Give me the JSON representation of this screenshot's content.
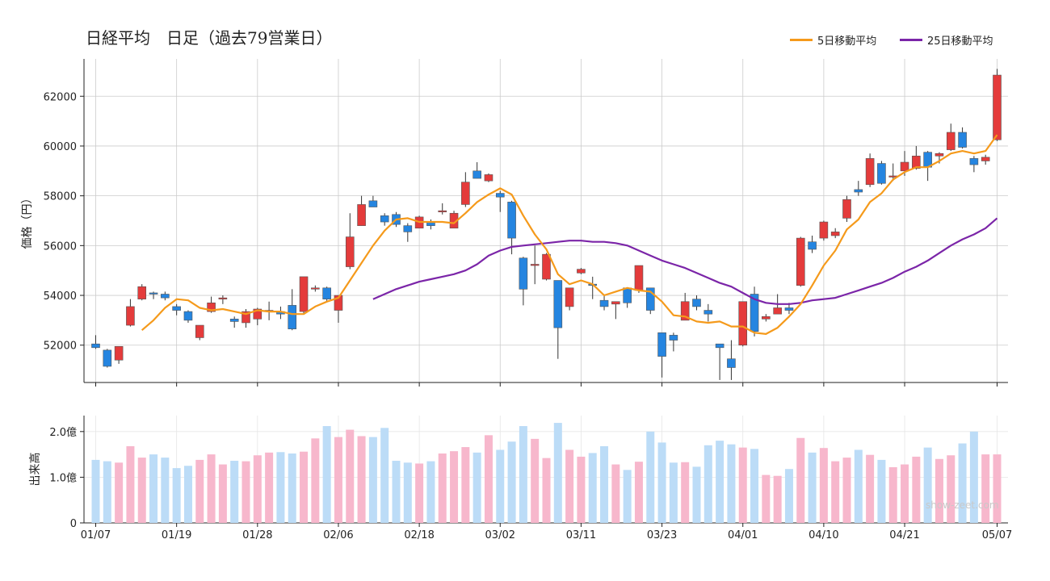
{
  "title": "日経平均　日足（過去79営業日）",
  "legend": {
    "ma5": "5日移動平均",
    "ma25": "25日移動平均"
  },
  "watermark": "show-zeet.com",
  "colors": {
    "up": "#e43b3b",
    "down": "#2585e0",
    "ma5": "#f59a1b",
    "ma25": "#7b25a8",
    "vol_up": "#f7b7cc",
    "vol_down": "#bcdcf7",
    "grid": "#cccccc",
    "axis": "#222222"
  },
  "chart_data": [
    {
      "type": "candlestick",
      "ylabel": "価格（円）",
      "ylim": [
        50500,
        63500
      ],
      "yticks": [
        52000,
        54000,
        56000,
        58000,
        60000,
        62000
      ],
      "xtick_labels": [
        {
          "index": 0,
          "label": "01/07"
        },
        {
          "index": 7,
          "label": "01/19"
        },
        {
          "index": 14,
          "label": "01/28"
        },
        {
          "index": 21,
          "label": "02/06"
        },
        {
          "index": 28,
          "label": "02/18"
        },
        {
          "index": 35,
          "label": "03/02"
        },
        {
          "index": 42,
          "label": "03/11"
        },
        {
          "index": 49,
          "label": "03/23"
        },
        {
          "index": 56,
          "label": "04/01"
        },
        {
          "index": 63,
          "label": "04/10"
        },
        {
          "index": 70,
          "label": "04/21"
        },
        {
          "index": 78,
          "label": "05/07"
        }
      ],
      "grid": true,
      "legend_position": "top-right",
      "candles": [
        [
          52050,
          52400,
          51850,
          51900
        ],
        [
          51800,
          51850,
          51100,
          51150
        ],
        [
          51400,
          51950,
          51250,
          51950
        ],
        [
          52800,
          53850,
          52750,
          53550
        ],
        [
          53850,
          54450,
          53800,
          54350
        ],
        [
          54100,
          54150,
          53850,
          54050
        ],
        [
          54050,
          54150,
          53800,
          53900
        ],
        [
          53550,
          53650,
          53200,
          53400
        ],
        [
          53350,
          53400,
          52900,
          53000
        ],
        [
          52300,
          52800,
          52200,
          52800
        ],
        [
          53350,
          53950,
          53300,
          53700
        ],
        [
          53850,
          54000,
          53650,
          53900
        ],
        [
          53050,
          53150,
          52700,
          52950
        ],
        [
          52900,
          53450,
          52700,
          53350
        ],
        [
          53050,
          53500,
          52800,
          53450
        ],
        [
          53400,
          53750,
          53000,
          53400
        ],
        [
          53350,
          53550,
          53050,
          53250
        ],
        [
          53600,
          54250,
          52600,
          52650
        ],
        [
          53350,
          54700,
          53250,
          54750
        ],
        [
          54300,
          54400,
          54150,
          54300
        ],
        [
          54300,
          54350,
          53750,
          53850
        ],
        [
          53400,
          54000,
          52900,
          54000
        ],
        [
          55150,
          57300,
          55050,
          56350
        ],
        [
          56800,
          58000,
          56800,
          57650
        ],
        [
          57800,
          58000,
          57550,
          57550
        ],
        [
          57200,
          57300,
          56800,
          56950
        ],
        [
          57250,
          57350,
          56750,
          56850
        ],
        [
          56800,
          56900,
          56150,
          56550
        ],
        [
          56700,
          57200,
          56700,
          57150
        ],
        [
          56950,
          57050,
          56650,
          56800
        ],
        [
          57400,
          57700,
          57250,
          57400
        ],
        [
          56700,
          57400,
          56700,
          57300
        ],
        [
          57650,
          58950,
          57550,
          58550
        ],
        [
          59000,
          59350,
          58700,
          58700
        ],
        [
          58600,
          58900,
          58550,
          58850
        ],
        [
          58100,
          58200,
          57350,
          57950
        ],
        [
          57750,
          57800,
          55650,
          56300
        ],
        [
          55500,
          55550,
          53600,
          54250
        ],
        [
          55200,
          56000,
          54450,
          55250
        ],
        [
          54650,
          55700,
          54600,
          55650
        ],
        [
          54600,
          54600,
          51450,
          52700
        ],
        [
          53550,
          54300,
          53400,
          54300
        ],
        [
          54900,
          55100,
          54850,
          55050
        ],
        [
          54450,
          54750,
          53850,
          54400
        ],
        [
          53800,
          54000,
          53400,
          53550
        ],
        [
          53650,
          53750,
          53050,
          53750
        ],
        [
          54300,
          54300,
          53500,
          53700
        ],
        [
          54200,
          55200,
          54100,
          55200
        ],
        [
          54300,
          54300,
          53250,
          53400
        ],
        [
          52500,
          52500,
          50700,
          51550
        ],
        [
          52400,
          52500,
          51750,
          52200
        ],
        [
          53000,
          54100,
          53000,
          53750
        ],
        [
          53850,
          54000,
          53400,
          53550
        ],
        [
          53400,
          53650,
          52950,
          53250
        ],
        [
          52050,
          52050,
          50600,
          51900
        ],
        [
          51450,
          52200,
          50600,
          51100
        ],
        [
          52000,
          53700,
          51950,
          53750
        ],
        [
          54050,
          54350,
          52350,
          52550
        ],
        [
          53050,
          53250,
          52950,
          53150
        ],
        [
          53250,
          54050,
          53250,
          53500
        ],
        [
          53500,
          53700,
          53250,
          53400
        ],
        [
          54400,
          56350,
          54350,
          56300
        ],
        [
          56150,
          56400,
          55700,
          55850
        ],
        [
          56300,
          57000,
          56200,
          56950
        ],
        [
          56400,
          56700,
          56300,
          56550
        ],
        [
          57100,
          58000,
          56950,
          57850
        ],
        [
          58250,
          58600,
          58000,
          58150
        ],
        [
          58450,
          59700,
          58350,
          59500
        ],
        [
          59300,
          59400,
          58450,
          58500
        ],
        [
          58800,
          59300,
          58600,
          58800
        ],
        [
          59000,
          59800,
          58800,
          59350
        ],
        [
          59100,
          60000,
          59050,
          59600
        ],
        [
          59750,
          59800,
          58600,
          59150
        ],
        [
          59600,
          59750,
          59300,
          59700
        ],
        [
          59850,
          60900,
          59800,
          60550
        ],
        [
          60550,
          60750,
          59900,
          59950
        ],
        [
          59500,
          59600,
          58950,
          59250
        ],
        [
          59400,
          59650,
          59250,
          59550
        ],
        [
          60250,
          63100,
          60200,
          62850
        ]
      ],
      "ma5": [
        null,
        null,
        null,
        null,
        52600,
        53000,
        53500,
        53850,
        53800,
        53500,
        53400,
        53450,
        53350,
        53250,
        53400,
        53350,
        53350,
        53250,
        53250,
        53550,
        53750,
        53900,
        54600,
        55300,
        56000,
        56600,
        57050,
        57100,
        56950,
        56950,
        56950,
        56900,
        57300,
        57750,
        58050,
        58300,
        58050,
        57200,
        56450,
        55850,
        54850,
        54450,
        54600,
        54450,
        54000,
        54150,
        54300,
        54200,
        54150,
        53750,
        53200,
        53150,
        52950,
        52900,
        52950,
        52750,
        52750,
        52500,
        52450,
        52700,
        53150,
        53650,
        54400,
        55200,
        55800,
        56650,
        57050,
        57750,
        58100,
        58650,
        58950,
        59150,
        59150,
        59400,
        59700,
        59800,
        59700,
        59800,
        60450
      ],
      "ma25": [
        null,
        null,
        null,
        null,
        null,
        null,
        null,
        null,
        null,
        null,
        null,
        null,
        null,
        null,
        null,
        null,
        null,
        null,
        null,
        null,
        null,
        null,
        null,
        null,
        53850,
        54050,
        54250,
        54400,
        54550,
        54650,
        54750,
        54850,
        55000,
        55250,
        55600,
        55800,
        55950,
        56000,
        56050,
        56100,
        56150,
        56200,
        56200,
        56150,
        56150,
        56100,
        56000,
        55800,
        55600,
        55400,
        55250,
        55100,
        54900,
        54700,
        54500,
        54350,
        54100,
        53850,
        53700,
        53650,
        53650,
        53700,
        53800,
        53850,
        53900,
        54050,
        54200,
        54350,
        54500,
        54700,
        54950,
        55150,
        55400,
        55700,
        56000,
        56250,
        56450,
        56700,
        57100
      ]
    },
    {
      "type": "bar",
      "ylabel": "出来高",
      "ylim": [
        0,
        2.35
      ],
      "yticks": [
        {
          "value": 0,
          "label": "0"
        },
        {
          "value": 1.0,
          "label": "1.0億"
        },
        {
          "value": 2.0,
          "label": "2.0億"
        }
      ],
      "volume": [
        1.38,
        1.35,
        1.32,
        1.68,
        1.43,
        1.5,
        1.43,
        1.2,
        1.25,
        1.38,
        1.5,
        1.28,
        1.36,
        1.35,
        1.48,
        1.54,
        1.55,
        1.52,
        1.56,
        1.85,
        2.12,
        1.88,
        2.04,
        1.9,
        1.88,
        2.08,
        1.36,
        1.32,
        1.3,
        1.35,
        1.52,
        1.57,
        1.66,
        1.54,
        1.92,
        1.6,
        1.78,
        2.12,
        1.84,
        1.42,
        2.19,
        1.6,
        1.45,
        1.53,
        1.68,
        1.28,
        1.16,
        1.34,
        2.0,
        1.76,
        1.32,
        1.33,
        1.23,
        1.7,
        1.8,
        1.72,
        1.65,
        1.62,
        1.05,
        1.03,
        1.18,
        1.86,
        1.54,
        1.64,
        1.35,
        1.43,
        1.6,
        1.49,
        1.38,
        1.22,
        1.28,
        1.45,
        1.65,
        1.4,
        1.48,
        1.74,
        2.0,
        1.5,
        1.5
      ]
    }
  ]
}
